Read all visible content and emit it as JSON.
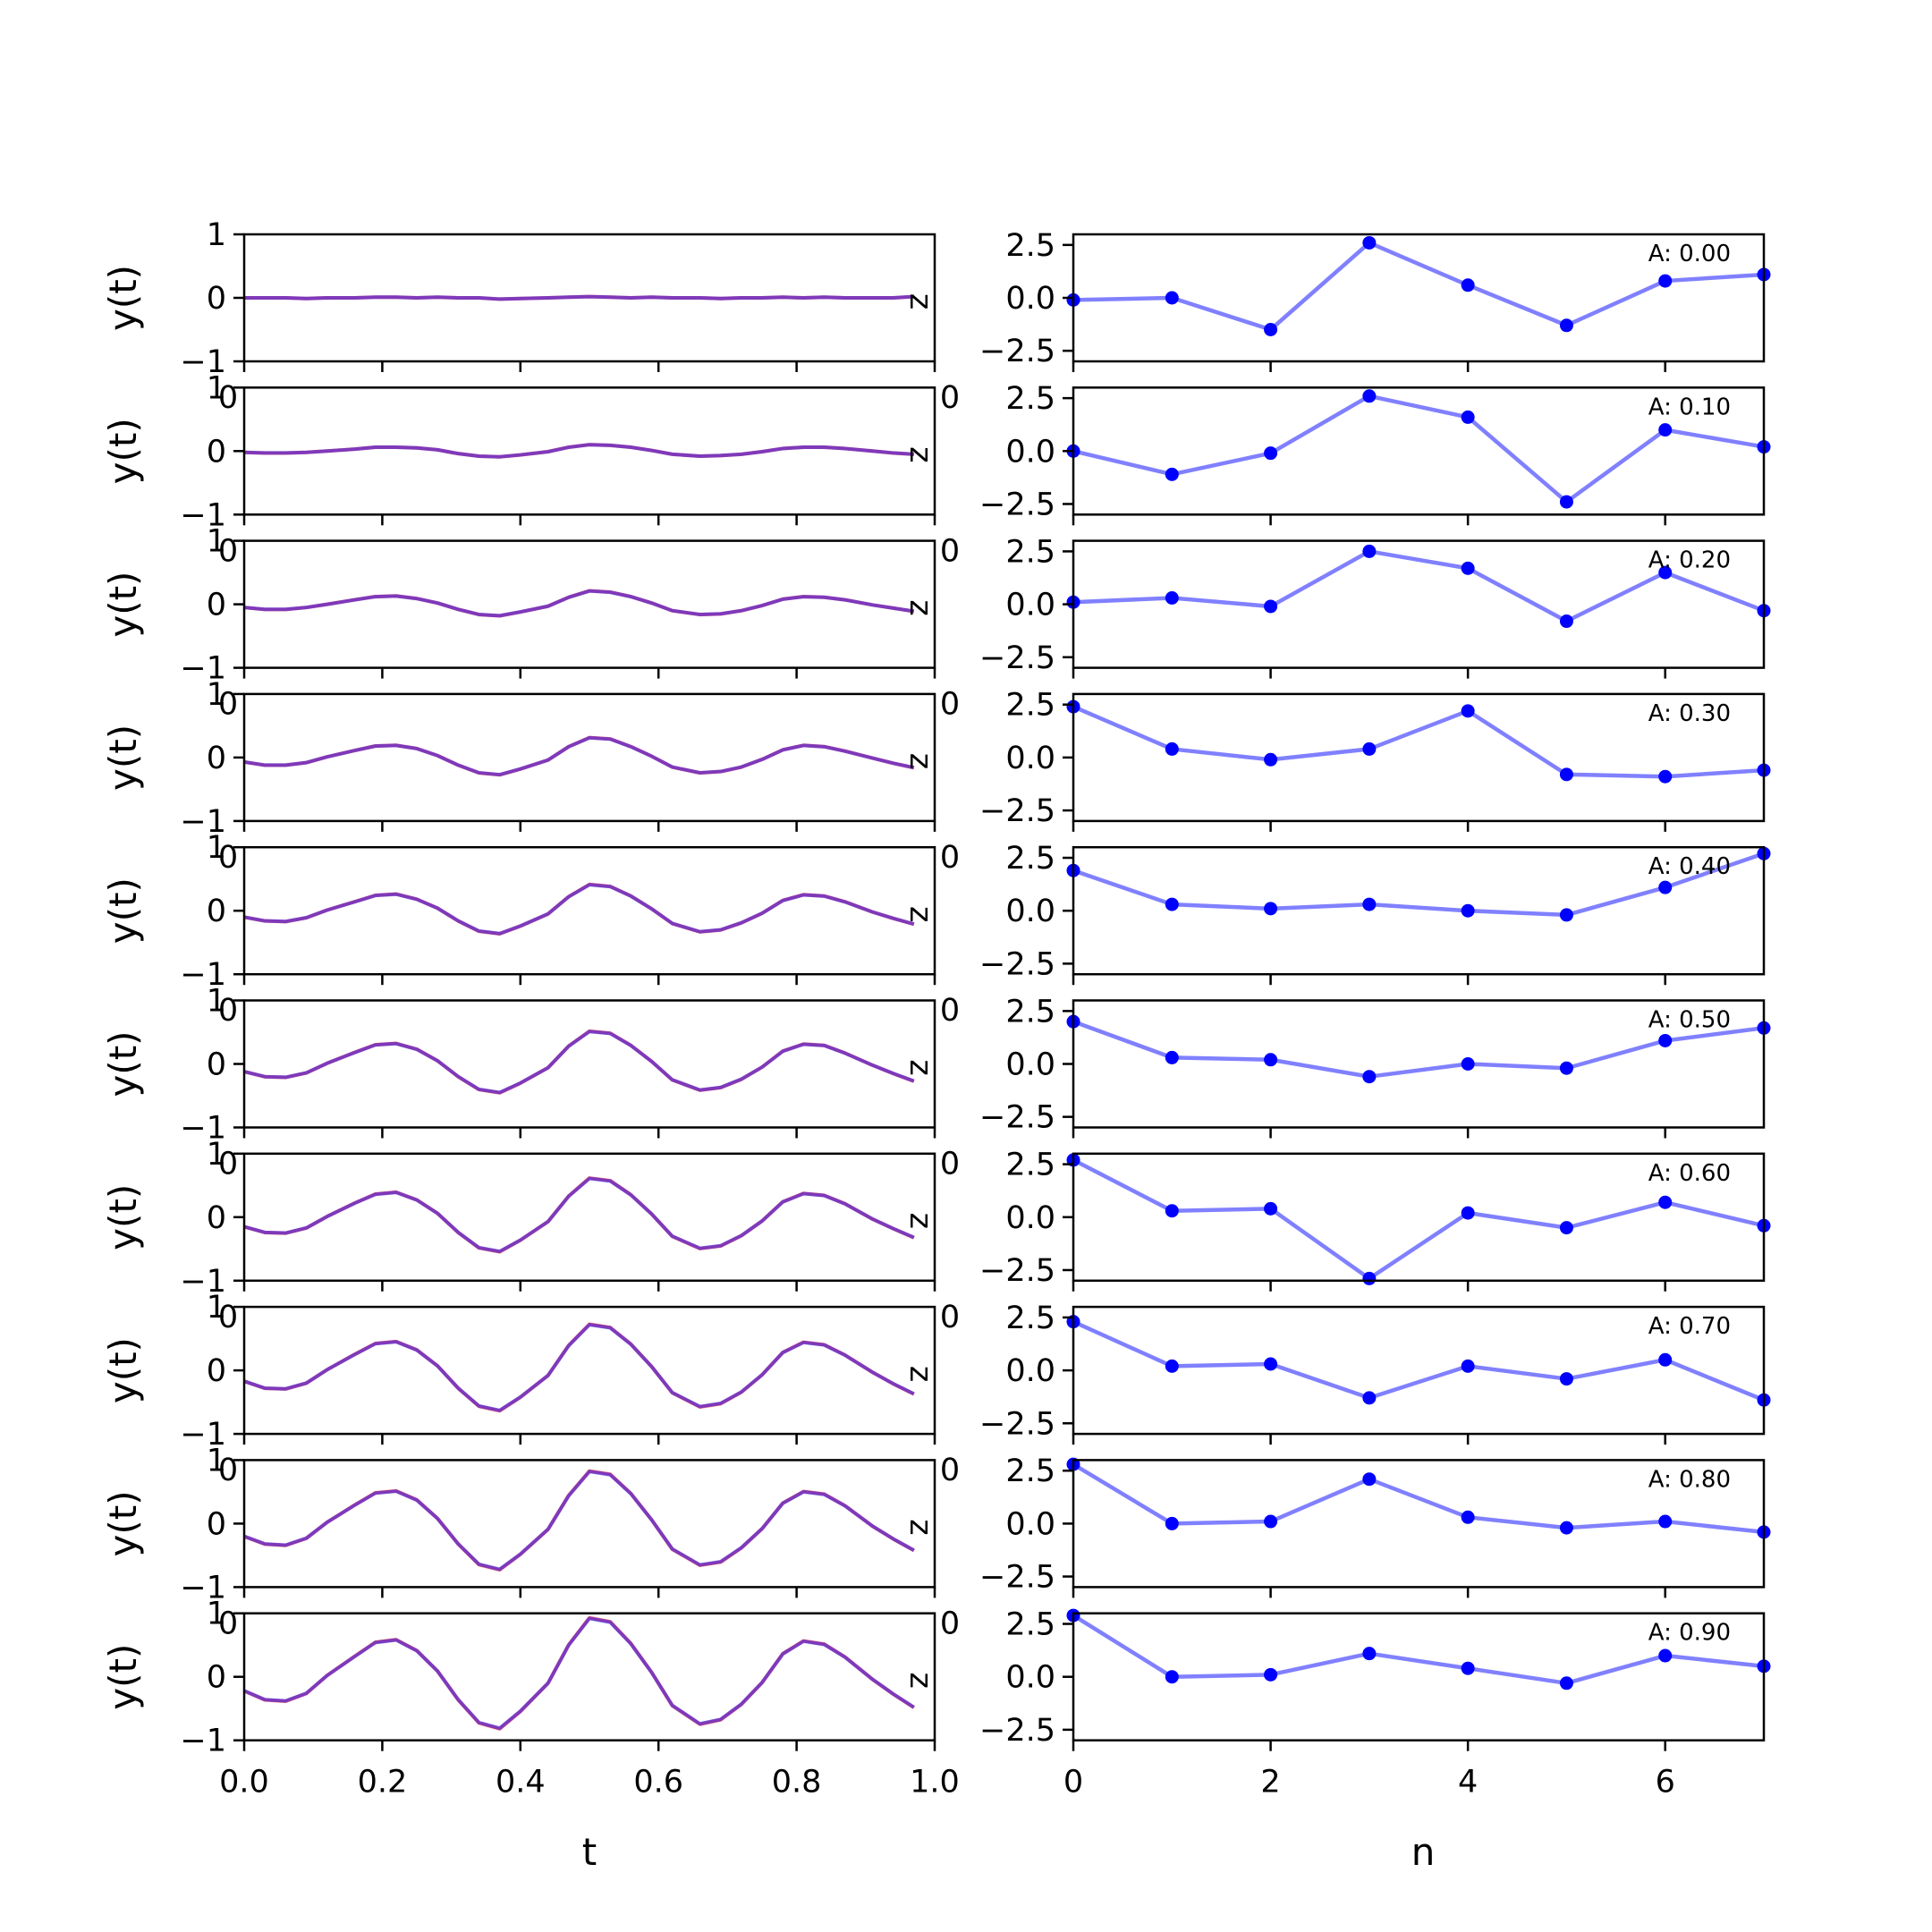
{
  "colors": {
    "signal_line": "#0000ff",
    "target_line": "#ff0000",
    "coef_line": "#8080ff",
    "coef_marker": "#0000ff",
    "frame": "#000000"
  },
  "chart_data": [
    {
      "type": "line",
      "column": "left",
      "ylabel": "y(t)",
      "xlabel": "t",
      "xlim": [
        0.0,
        1.0
      ],
      "ylim": [
        -1,
        1
      ],
      "xticks": [
        "0.0",
        "0.2",
        "0.4",
        "0.6",
        "0.8",
        "1.0"
      ],
      "yticks": [
        "1",
        "0",
        "−1"
      ],
      "overlap_label": "0",
      "side_label": "z",
      "t": [
        0.0,
        0.03,
        0.06,
        0.09,
        0.12,
        0.16,
        0.19,
        0.22,
        0.25,
        0.28,
        0.31,
        0.34,
        0.37,
        0.4,
        0.44,
        0.47,
        0.5,
        0.53,
        0.56,
        0.59,
        0.62,
        0.66,
        0.69,
        0.72,
        0.75,
        0.78,
        0.81,
        0.84,
        0.87,
        0.91,
        0.94,
        0.97
      ],
      "panels": [
        {
          "amplitude": 0.0,
          "values": [
            0.0,
            0.0,
            0.0,
            -0.01,
            0.0,
            0.0,
            0.01,
            0.01,
            0.0,
            0.01,
            0.0,
            0.0,
            -0.02,
            -0.01,
            0.0,
            0.01,
            0.02,
            0.01,
            0.0,
            0.01,
            0.0,
            0.0,
            -0.01,
            0.0,
            0.0,
            0.01,
            0.0,
            0.01,
            0.0,
            0.0,
            0.0,
            0.02
          ]
        },
        {
          "amplitude": 0.1,
          "values": [
            -0.02,
            -0.03,
            -0.03,
            -0.02,
            0.0,
            0.03,
            0.06,
            0.06,
            0.05,
            0.02,
            -0.04,
            -0.08,
            -0.09,
            -0.06,
            -0.01,
            0.06,
            0.1,
            0.09,
            0.06,
            0.01,
            -0.05,
            -0.08,
            -0.07,
            -0.05,
            -0.01,
            0.04,
            0.06,
            0.06,
            0.04,
            0.0,
            -0.03,
            -0.05
          ]
        },
        {
          "amplitude": 0.2,
          "values": [
            -0.05,
            -0.08,
            -0.08,
            -0.05,
            0.0,
            0.07,
            0.12,
            0.13,
            0.09,
            0.02,
            -0.08,
            -0.16,
            -0.18,
            -0.12,
            -0.03,
            0.11,
            0.21,
            0.19,
            0.12,
            0.02,
            -0.1,
            -0.16,
            -0.15,
            -0.1,
            -0.02,
            0.08,
            0.12,
            0.11,
            0.07,
            -0.01,
            -0.06,
            -0.11
          ]
        },
        {
          "amplitude": 0.3,
          "values": [
            -0.07,
            -0.12,
            -0.12,
            -0.08,
            0.01,
            0.11,
            0.18,
            0.19,
            0.14,
            0.03,
            -0.12,
            -0.24,
            -0.27,
            -0.18,
            -0.04,
            0.17,
            0.31,
            0.29,
            0.17,
            0.02,
            -0.15,
            -0.24,
            -0.22,
            -0.15,
            -0.03,
            0.12,
            0.19,
            0.17,
            0.1,
            -0.01,
            -0.09,
            -0.16
          ]
        },
        {
          "amplitude": 0.4,
          "values": [
            -0.1,
            -0.16,
            -0.17,
            -0.11,
            0.01,
            0.14,
            0.24,
            0.26,
            0.18,
            0.04,
            -0.16,
            -0.32,
            -0.36,
            -0.24,
            -0.05,
            0.22,
            0.41,
            0.38,
            0.23,
            0.03,
            -0.2,
            -0.33,
            -0.3,
            -0.19,
            -0.04,
            0.16,
            0.25,
            0.23,
            0.14,
            -0.02,
            -0.12,
            -0.21
          ]
        },
        {
          "amplitude": 0.5,
          "values": [
            -0.12,
            -0.2,
            -0.21,
            -0.14,
            0.01,
            0.18,
            0.3,
            0.32,
            0.23,
            0.05,
            -0.2,
            -0.4,
            -0.45,
            -0.3,
            -0.06,
            0.28,
            0.51,
            0.48,
            0.29,
            0.04,
            -0.25,
            -0.41,
            -0.37,
            -0.24,
            -0.05,
            0.2,
            0.31,
            0.29,
            0.17,
            -0.02,
            -0.15,
            -0.27
          ]
        },
        {
          "amplitude": 0.6,
          "values": [
            -0.15,
            -0.24,
            -0.25,
            -0.17,
            0.01,
            0.22,
            0.36,
            0.39,
            0.27,
            0.06,
            -0.24,
            -0.48,
            -0.54,
            -0.36,
            -0.07,
            0.33,
            0.61,
            0.57,
            0.35,
            0.05,
            -0.3,
            -0.49,
            -0.45,
            -0.29,
            -0.06,
            0.24,
            0.37,
            0.34,
            0.21,
            -0.03,
            -0.18,
            -0.32
          ]
        },
        {
          "amplitude": 0.7,
          "values": [
            -0.17,
            -0.28,
            -0.29,
            -0.2,
            0.01,
            0.25,
            0.42,
            0.45,
            0.32,
            0.07,
            -0.28,
            -0.56,
            -0.63,
            -0.42,
            -0.08,
            0.39,
            0.72,
            0.67,
            0.41,
            0.06,
            -0.35,
            -0.57,
            -0.52,
            -0.34,
            -0.07,
            0.28,
            0.44,
            0.4,
            0.24,
            -0.03,
            -0.21,
            -0.37
          ]
        },
        {
          "amplitude": 0.8,
          "values": [
            -0.2,
            -0.32,
            -0.34,
            -0.23,
            0.02,
            0.29,
            0.48,
            0.51,
            0.37,
            0.08,
            -0.32,
            -0.64,
            -0.72,
            -0.48,
            -0.09,
            0.44,
            0.82,
            0.77,
            0.47,
            0.06,
            -0.4,
            -0.65,
            -0.6,
            -0.38,
            -0.08,
            0.32,
            0.5,
            0.46,
            0.28,
            -0.04,
            -0.24,
            -0.42
          ]
        },
        {
          "amplitude": 0.9,
          "values": [
            -0.22,
            -0.36,
            -0.38,
            -0.26,
            0.02,
            0.32,
            0.54,
            0.58,
            0.41,
            0.09,
            -0.36,
            -0.72,
            -0.81,
            -0.54,
            -0.1,
            0.5,
            0.92,
            0.86,
            0.52,
            0.07,
            -0.45,
            -0.74,
            -0.67,
            -0.43,
            -0.09,
            0.36,
            0.56,
            0.51,
            0.31,
            -0.04,
            -0.27,
            -0.48
          ]
        }
      ]
    },
    {
      "type": "line",
      "column": "right",
      "xlabel": "n",
      "xlim": [
        0,
        7
      ],
      "ylim": [
        -3.0,
        3.0
      ],
      "xticks": [
        "0",
        "2",
        "4",
        "6"
      ],
      "yticks": [
        "2.5",
        "0.0",
        "−2.5"
      ],
      "overlap_label": "0",
      "n": [
        0,
        1,
        2,
        3,
        4,
        5,
        6,
        7
      ],
      "panels": [
        {
          "annotation": "A: 0.00",
          "values": [
            -0.1,
            0.0,
            -1.5,
            2.6,
            0.6,
            -1.3,
            0.8,
            1.1
          ]
        },
        {
          "annotation": "A: 0.10",
          "values": [
            0.0,
            -1.1,
            -0.1,
            2.6,
            1.6,
            -2.4,
            1.0,
            0.2
          ]
        },
        {
          "annotation": "A: 0.20",
          "values": [
            0.1,
            0.3,
            -0.1,
            2.5,
            1.7,
            -0.8,
            1.5,
            -0.3
          ]
        },
        {
          "annotation": "A: 0.30",
          "values": [
            2.4,
            0.4,
            -0.1,
            0.4,
            2.2,
            -0.8,
            -0.9,
            -0.6
          ]
        },
        {
          "annotation": "A: 0.40",
          "values": [
            1.9,
            0.3,
            0.1,
            0.3,
            0.0,
            -0.2,
            1.1,
            2.7
          ]
        },
        {
          "annotation": "A: 0.50",
          "values": [
            2.0,
            0.3,
            0.2,
            -0.6,
            0.0,
            -0.2,
            1.1,
            1.7
          ]
        },
        {
          "annotation": "A: 0.60",
          "values": [
            2.7,
            0.3,
            0.4,
            -2.9,
            0.2,
            -0.5,
            0.7,
            -0.4
          ]
        },
        {
          "annotation": "A: 0.70",
          "values": [
            2.3,
            0.2,
            0.3,
            -1.3,
            0.2,
            -0.4,
            0.5,
            -1.4
          ]
        },
        {
          "annotation": "A: 0.80",
          "values": [
            2.8,
            0.0,
            0.1,
            2.1,
            0.3,
            -0.2,
            0.1,
            -0.4
          ]
        },
        {
          "annotation": "A: 0.90",
          "values": [
            2.9,
            0.0,
            0.1,
            1.1,
            0.4,
            -0.3,
            1.0,
            0.5
          ]
        }
      ]
    }
  ]
}
